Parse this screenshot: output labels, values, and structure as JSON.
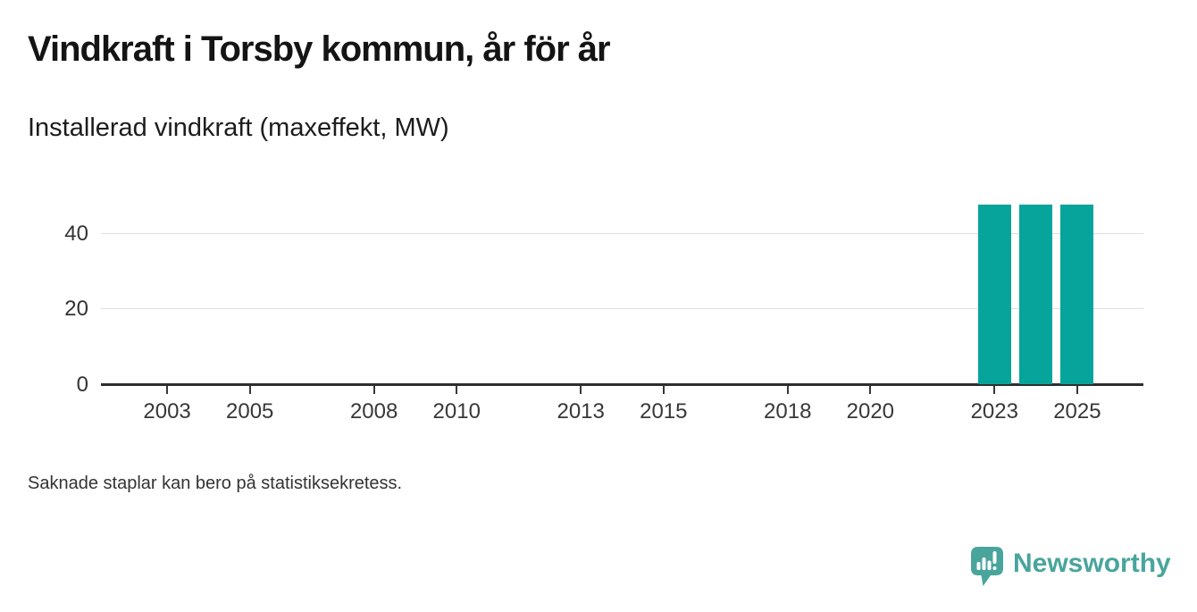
{
  "chart_data": {
    "type": "bar",
    "title": "Vindkraft i Torsby kommun, år för år",
    "subtitle": "Installerad vindkraft (maxeffekt, MW)",
    "unit": "MW",
    "categories": [
      2023,
      2024,
      2025
    ],
    "values": [
      47.5,
      47.5,
      47.5
    ],
    "xticks": [
      2003,
      2005,
      2008,
      2010,
      2013,
      2015,
      2018,
      2020,
      2023,
      2025
    ],
    "yticks": [
      0,
      20,
      40
    ],
    "xlim": [
      2001.4,
      2026.6
    ],
    "ylim": [
      0,
      52
    ],
    "grid": "horizontal",
    "legend": "none",
    "colors": {
      "bar": "#06a49b",
      "axis": "#2e2e2e",
      "gridline": "#dedede",
      "tick_text": "#383838",
      "title_text": "#141414"
    }
  },
  "footer": {
    "note": "Saknade staplar kan bero på statistiksekretess.",
    "brand": "Newsworthy",
    "brand_color": "#49a59c"
  }
}
